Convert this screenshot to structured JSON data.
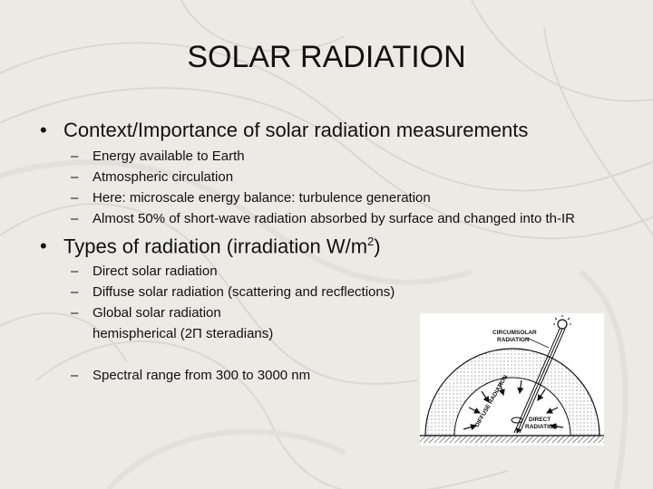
{
  "slide": {
    "title": "SOLAR RADIATION",
    "bullet_glyph": "•",
    "dash_glyph": "–",
    "section1": {
      "heading": "Context/Importance of solar radiation measurements",
      "items": [
        "Energy available to Earth",
        "Atmospheric circulation",
        "Here: microscale energy balance: turbulence generation",
        "Almost 50% of short-wave radiation absorbed by surface and changed into th-IR"
      ]
    },
    "section2": {
      "heading_main": "Types of radiation (irradiation W/m",
      "heading_sup": "2",
      "heading_end": ")",
      "items": [
        "Direct solar radiation",
        "Diffuse solar radiation (scattering and recflections)",
        "Global solar radiation"
      ],
      "note": "hemispherical (2Π steradians)",
      "item_last": "Spectral range from 300 to 3000 nm"
    },
    "figure": {
      "label_circumsolar_1": "CIRCUMSOLAR",
      "label_circumsolar_2": "RADIATION",
      "label_diffuse": "DIFFUSE RADIATION",
      "label_direct_1": "DIRECT",
      "label_direct_2": "RADIATION"
    }
  }
}
